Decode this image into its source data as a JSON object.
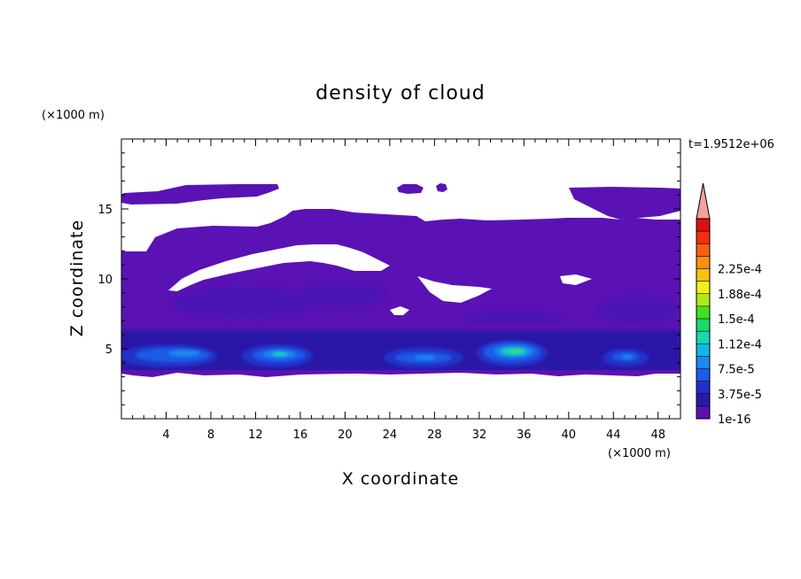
{
  "chart_data": {
    "type": "heatmap",
    "title": "density of cloud",
    "xlabel": "X coordinate",
    "ylabel": "Z coordinate",
    "x_unit": "(×1000 m)",
    "y_unit": "(×1000 m)",
    "time_label": "t=1.9512e+06",
    "xlim": [
      0,
      50
    ],
    "ylim": [
      0,
      20
    ],
    "x_ticks": [
      4,
      8,
      12,
      16,
      20,
      24,
      28,
      32,
      36,
      40,
      44,
      48
    ],
    "y_ticks": [
      5,
      10,
      15
    ],
    "colorbar": {
      "labels": [
        "1e-16",
        "3.75e-5",
        "7.5e-5",
        "1.12e-4",
        "1.5e-4",
        "1.88e-4",
        "2.25e-4"
      ],
      "colors": [
        "#5a12b4",
        "#2a18a6",
        "#2130c8",
        "#1f5ae8",
        "#1e88f0",
        "#10b8e8",
        "#18d8b0",
        "#18d870",
        "#40e020",
        "#b0e818",
        "#f0f018",
        "#f8c010",
        "#f89010",
        "#f86010",
        "#f03010",
        "#e01010"
      ],
      "extend_color": "#f7a0a0"
    },
    "regions": {
      "upper_cloud": {
        "x": [
          0,
          50
        ],
        "z": [
          6,
          16.5
        ],
        "value": "1e-16"
      },
      "lower_band": {
        "x": [
          0,
          50
        ],
        "z": [
          3.3,
          6
        ],
        "value": "3.75e-5"
      },
      "cores": [
        {
          "x_center": 5,
          "z_center": 4.7,
          "width": 8,
          "max": "7.5e-5"
        },
        {
          "x_center": 14,
          "z_center": 4.7,
          "width": 6,
          "max": "1.12e-4"
        },
        {
          "x_center": 26.5,
          "z_center": 4.5,
          "width": 8,
          "max": "7.5e-5"
        },
        {
          "x_center": 35,
          "z_center": 4.9,
          "width": 7,
          "max": "1.5e-4"
        },
        {
          "x_center": 45,
          "z_center": 4.6,
          "width": 4,
          "max": "7.5e-5"
        }
      ]
    }
  }
}
